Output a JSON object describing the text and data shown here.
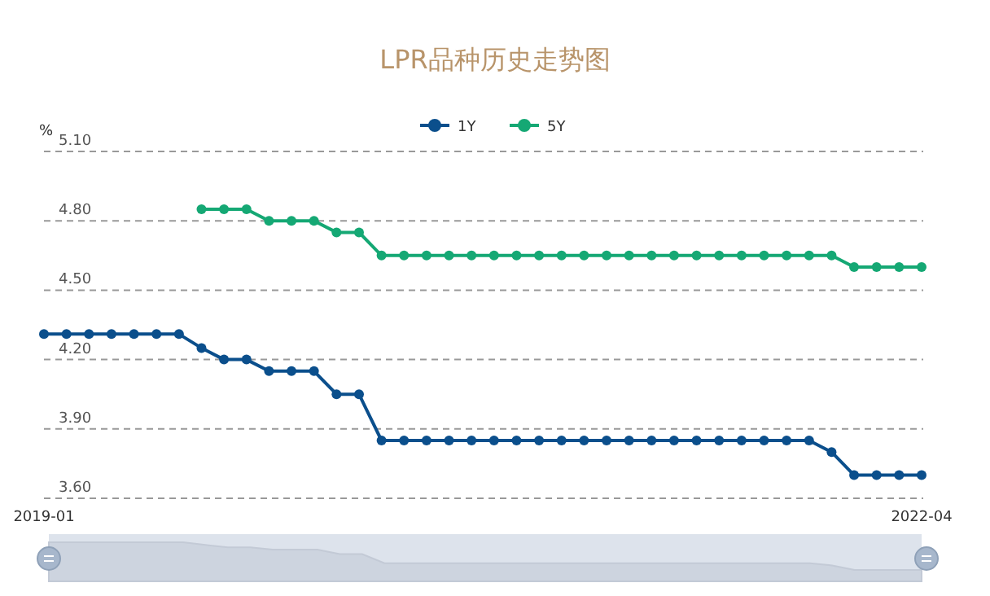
{
  "chart_data": {
    "type": "line",
    "title": "LPR品种历史走势图",
    "ylabel": "%",
    "categories": [
      "2019-01",
      null,
      null,
      null,
      null,
      null,
      null,
      null,
      null,
      null,
      null,
      null,
      null,
      null,
      null,
      null,
      null,
      null,
      null,
      null,
      null,
      null,
      null,
      null,
      null,
      null,
      null,
      null,
      null,
      null,
      null,
      null,
      null,
      null,
      null,
      null,
      null,
      null,
      null,
      "2022-04"
    ],
    "series": [
      {
        "name": "1Y",
        "color": "#0b4f8c",
        "values": [
          4.31,
          4.31,
          4.31,
          4.31,
          4.31,
          4.31,
          4.31,
          4.25,
          4.2,
          4.2,
          4.15,
          4.15,
          4.15,
          4.05,
          4.05,
          3.85,
          3.85,
          3.85,
          3.85,
          3.85,
          3.85,
          3.85,
          3.85,
          3.85,
          3.85,
          3.85,
          3.85,
          3.85,
          3.85,
          3.85,
          3.85,
          3.85,
          3.85,
          3.85,
          3.85,
          3.8,
          3.7,
          3.7,
          3.7,
          3.7
        ]
      },
      {
        "name": "5Y",
        "color": "#15a874",
        "values": [
          null,
          null,
          null,
          null,
          null,
          null,
          null,
          4.85,
          4.85,
          4.85,
          4.8,
          4.8,
          4.8,
          4.75,
          4.75,
          4.65,
          4.65,
          4.65,
          4.65,
          4.65,
          4.65,
          4.65,
          4.65,
          4.65,
          4.65,
          4.65,
          4.65,
          4.65,
          4.65,
          4.65,
          4.65,
          4.65,
          4.65,
          4.65,
          4.65,
          4.65,
          4.6,
          4.6,
          4.6,
          4.6
        ]
      }
    ],
    "ylim": [
      3.6,
      5.1
    ],
    "yticks": [
      {
        "value": 3.6,
        "label": "3.60"
      },
      {
        "value": 3.9,
        "label": "3.90"
      },
      {
        "value": 4.2,
        "label": "4.20"
      },
      {
        "value": 4.5,
        "label": "4.50"
      },
      {
        "value": 4.8,
        "label": "4.80"
      },
      {
        "value": 5.1,
        "label": "5.10"
      }
    ],
    "grid": "y",
    "legend": "top",
    "marker": "circle",
    "line_style": "solid"
  }
}
